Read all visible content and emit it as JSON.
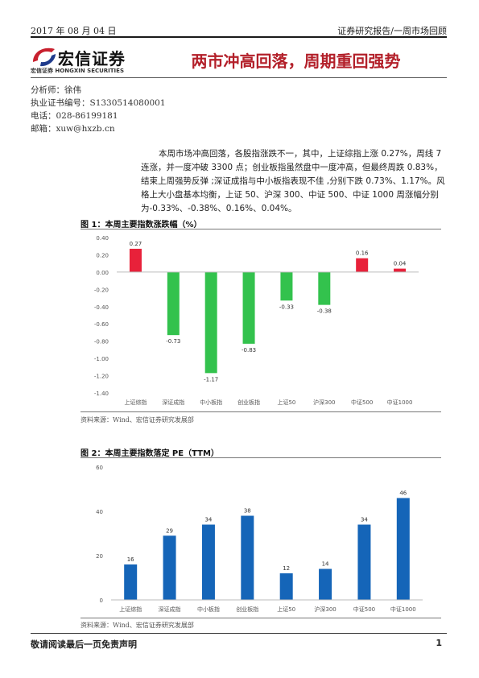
{
  "header": {
    "date": "2017 年 08 月 04 日",
    "report_type": "证券研究报告/一周市场回顾"
  },
  "logo": {
    "name_cn": "宏信证券",
    "name_en": "宏信证券 HONGXIN SECURITIES"
  },
  "title": "两市冲高回落，周期重回强势",
  "analyst": {
    "name_line": "分析师：徐伟",
    "cert_line": "执业证书编号：S1330514080001",
    "phone_line": "电话：028-86199181",
    "email_line": "邮箱：xuw@hxzb.cn"
  },
  "summary": "本周市场冲高回落，各股指涨跌不一，其中，上证综指上涨 0.27%，周线 7 连涨，并一度冲破 3300 点；创业板指虽然盘中一度冲高，但最终周跌 0.83%，结束上周强势反弹 ;深证成指与中小板指表现不佳 ,分别下跌 0.73%、1.17%。风格上大小盘基本均衡，上证 50、沪深 300、中证 500、中证 1000 周涨幅分别为-0.33%、-0.38%、0.16%、0.04%。",
  "figure1": {
    "title": "图 1：本周主要指数涨跌幅（%）",
    "source": "资料来源：Wind、宏信证券研究发展部"
  },
  "figure2": {
    "title": "图 2：本周主要指数落定 PE（TTM）",
    "source": "资料来源：Wind、宏信证券研究发展部"
  },
  "footer": {
    "disclaimer": "敬请阅读最后一页免责声明",
    "page": "1"
  },
  "colors": {
    "positive": "#e8213a",
    "negative": "#33c24d",
    "bar_blue": "#1565b8",
    "title_red": "#b3202a"
  },
  "chart_data": [
    {
      "type": "bar",
      "categories": [
        "上证综指",
        "深证成指",
        "中小板指",
        "创业板指",
        "上证50",
        "沪深300",
        "中证500",
        "中证1000"
      ],
      "values": [
        0.27,
        -0.73,
        -1.17,
        -0.83,
        -0.33,
        -0.38,
        0.16,
        0.04
      ],
      "value_labels": [
        "0.27",
        "-0.73",
        "-1.17",
        "-0.83",
        "-0.33",
        "-0.38",
        "0.16",
        "0.04"
      ],
      "ylim": [
        -1.4,
        0.4
      ],
      "yticks": [
        "0.40",
        "0.20",
        "0.00",
        "-0.20",
        "-0.40",
        "-0.60",
        "-0.80",
        "-1.00",
        "-1.20",
        "-1.40"
      ],
      "ytick_values": [
        0.4,
        0.2,
        0,
        -0.2,
        -0.4,
        -0.6,
        -0.8,
        -1.0,
        -1.2,
        -1.4
      ],
      "grid": false,
      "legend": "none"
    },
    {
      "type": "bar",
      "categories": [
        "上证综指",
        "深证成指",
        "中小板指",
        "创业板指",
        "上证50",
        "沪深300",
        "中证500",
        "中证1000"
      ],
      "values": [
        16,
        29,
        34,
        38,
        12,
        14,
        34,
        46
      ],
      "value_labels": [
        "16",
        "29",
        "34",
        "38",
        "12",
        "14",
        "34",
        "46"
      ],
      "ylim": [
        0,
        60
      ],
      "yticks": [
        "60",
        "40",
        "20",
        "0"
      ],
      "ytick_values": [
        60,
        40,
        20,
        0
      ],
      "grid": false,
      "legend": "none"
    }
  ]
}
